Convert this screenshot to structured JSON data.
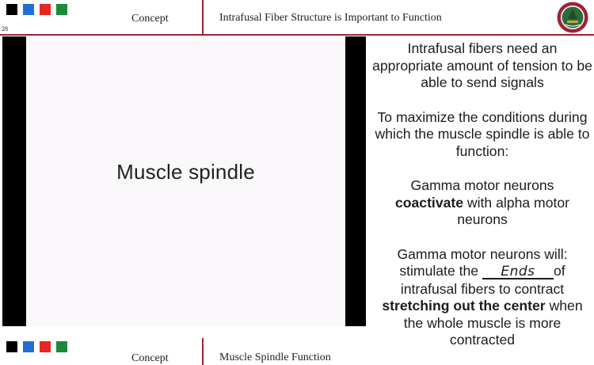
{
  "header": {
    "squares": [
      "#000000",
      "#1f6fd6",
      "#e8251e",
      "#1b8a3a"
    ],
    "slide_number": "28",
    "concept_label": "Concept",
    "title": "Intrafusal Fiber Structure is Important to Function",
    "logo_icon": "university-seal-icon"
  },
  "video": {
    "caption": "Muscle spindle"
  },
  "content": {
    "para1": "Intrafusal fibers need an appropriate amount of tension to be able to send signals",
    "para2": "To maximize the conditions during which the muscle spindle is able to function:",
    "para3_bold": "coactivate",
    "para3_pre": "Gamma motor neurons",
    "para3_post": "with alpha motor neurons",
    "para4_line1": "Gamma motor neurons will:",
    "para4_pre": "stimulate the",
    "para4_blank": "Ends",
    "para4_post": "of",
    "para4_line3": "intrafusal fibers to contract",
    "para4_bold": "stretching out the center",
    "para4_line4_post": "when",
    "para4_line5": "the whole muscle is more",
    "para4_line6": "contracted"
  },
  "footer": {
    "squares": [
      "#000000",
      "#1f6fd6",
      "#e8251e",
      "#1b8a3a"
    ],
    "concept_label": "Concept",
    "title": "Muscle Spindle Function"
  }
}
